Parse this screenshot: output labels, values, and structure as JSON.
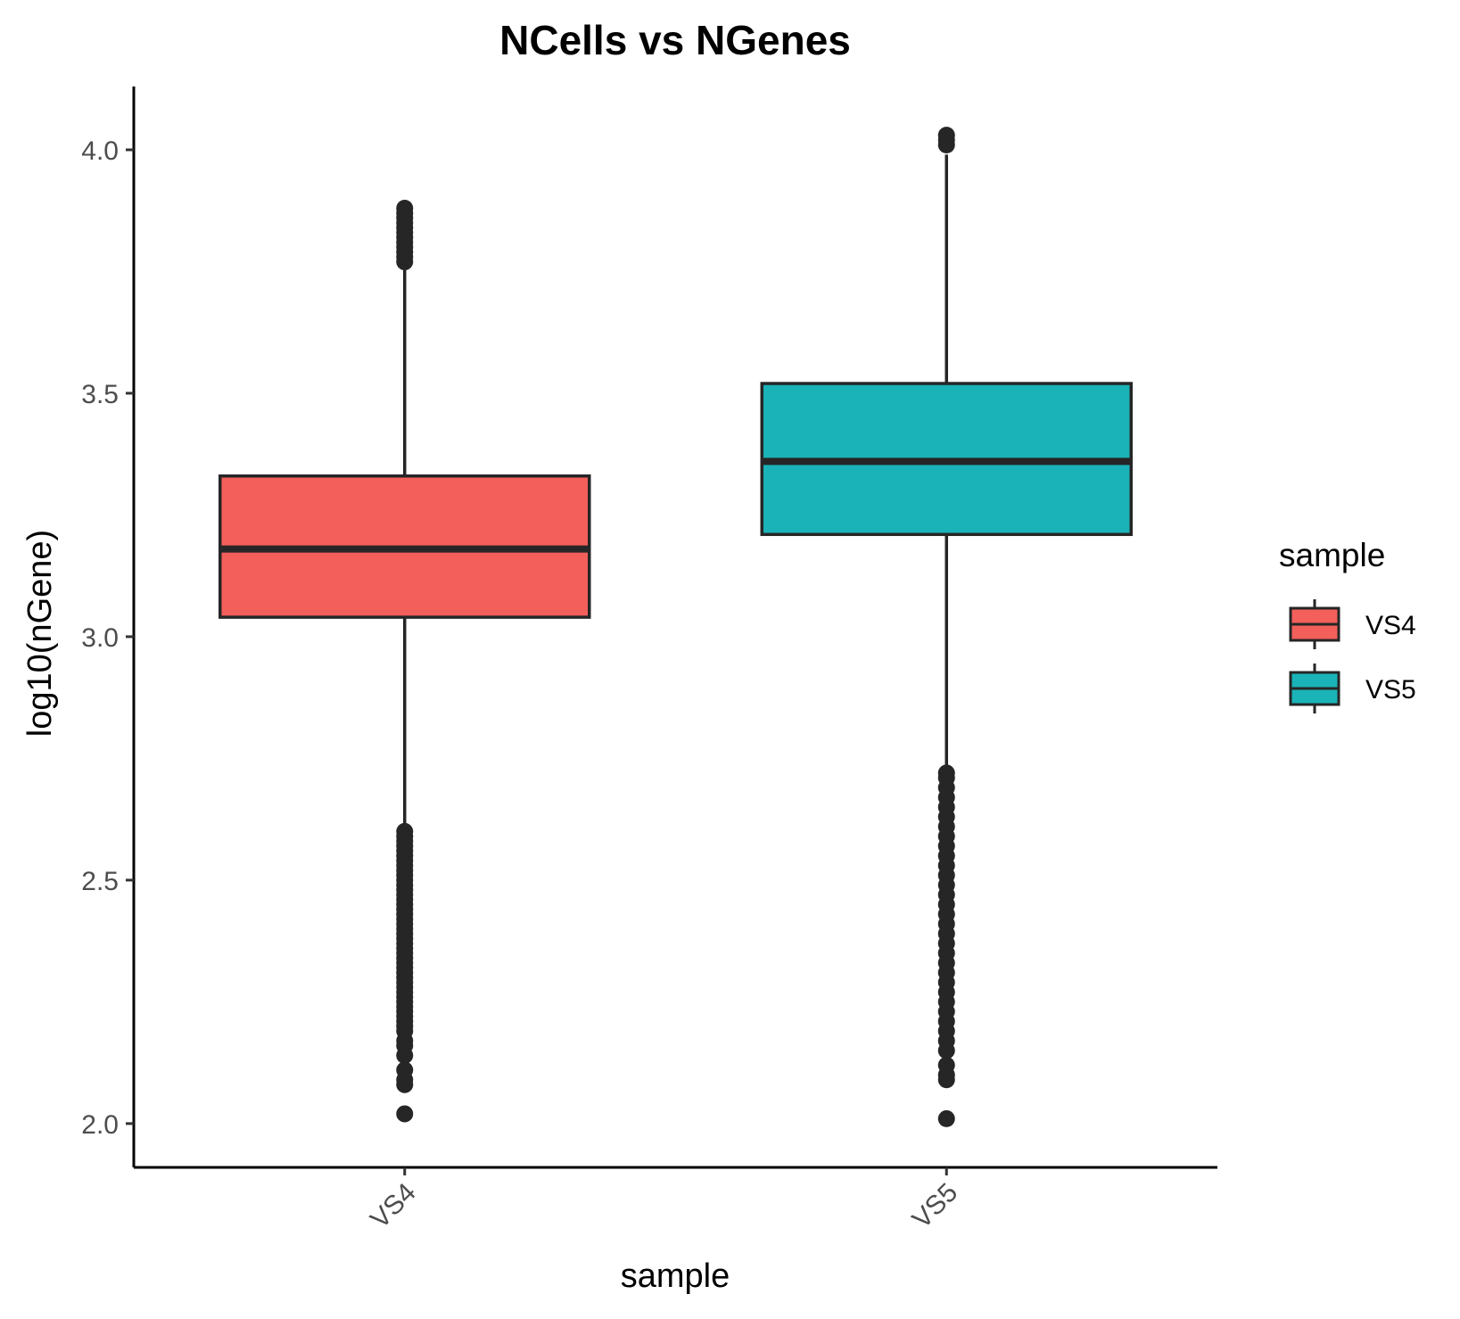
{
  "chart_data": {
    "type": "boxplot",
    "title": "NCells vs NGenes",
    "xlabel": "sample",
    "ylabel": "log10(nGene)",
    "categories": [
      "VS4",
      "VS5"
    ],
    "ylim": [
      1.91,
      4.13
    ],
    "yticks": [
      "2.0",
      "2.5",
      "3.0",
      "3.5",
      "4.0"
    ],
    "grid": false,
    "legend": {
      "title": "sample",
      "position": "right",
      "items": [
        "VS4",
        "VS5"
      ]
    },
    "series": [
      {
        "category": "VS4",
        "color": "#F35F5B",
        "whisker_low": 2.61,
        "q1": 3.04,
        "median": 3.18,
        "q3": 3.33,
        "whisker_high": 3.76,
        "outliers_high": [
          3.77,
          3.78,
          3.79,
          3.8,
          3.81,
          3.82,
          3.83,
          3.84,
          3.85,
          3.86,
          3.87,
          3.88
        ],
        "outliers_low": [
          2.02,
          2.08,
          2.09,
          2.11,
          2.14,
          2.16,
          2.17,
          2.19,
          2.2,
          2.21,
          2.22,
          2.23,
          2.24,
          2.25,
          2.26,
          2.27,
          2.28,
          2.29,
          2.3,
          2.31,
          2.32,
          2.33,
          2.34,
          2.35,
          2.36,
          2.37,
          2.38,
          2.39,
          2.4,
          2.41,
          2.42,
          2.43,
          2.44,
          2.45,
          2.46,
          2.47,
          2.48,
          2.49,
          2.5,
          2.51,
          2.52,
          2.53,
          2.54,
          2.55,
          2.56,
          2.57,
          2.58,
          2.59,
          2.6
        ]
      },
      {
        "category": "VS5",
        "color": "#1AB3B7",
        "whisker_low": 2.73,
        "q1": 3.21,
        "median": 3.36,
        "q3": 3.52,
        "whisker_high": 3.99,
        "outliers_high": [
          4.01,
          4.02,
          4.03
        ],
        "outliers_low": [
          2.01,
          2.09,
          2.1,
          2.12,
          2.15,
          2.17,
          2.19,
          2.21,
          2.23,
          2.25,
          2.27,
          2.29,
          2.31,
          2.33,
          2.35,
          2.37,
          2.39,
          2.41,
          2.43,
          2.45,
          2.47,
          2.49,
          2.51,
          2.53,
          2.55,
          2.57,
          2.59,
          2.61,
          2.63,
          2.65,
          2.67,
          2.69,
          2.71,
          2.72
        ]
      }
    ]
  }
}
